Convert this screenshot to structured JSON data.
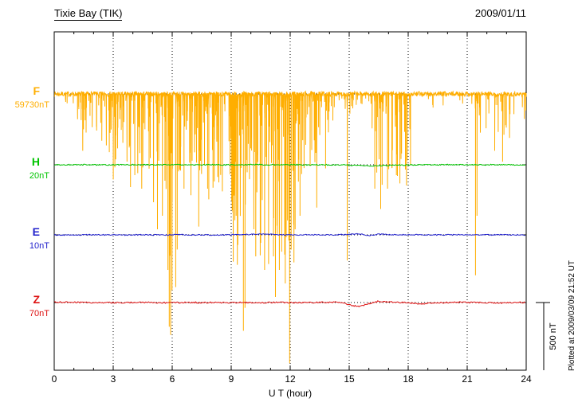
{
  "header": {
    "title": "Tixie Bay (TIK)",
    "date": "2009/01/11"
  },
  "axis": {
    "xlabel": "U T (hour)",
    "x_ticks": [
      0,
      3,
      6,
      9,
      12,
      15,
      18,
      21,
      24
    ],
    "x_minor_step": 1,
    "x_range": [
      0,
      24
    ]
  },
  "components": [
    {
      "label": "F",
      "value_label": "59730nT",
      "color": "#FFAE00"
    },
    {
      "label": "H",
      "value_label": "20nT",
      "color": "#00C400"
    },
    {
      "label": "E",
      "value_label": "10nT",
      "color": "#2222CC"
    },
    {
      "label": "Z",
      "value_label": "70nT",
      "color": "#DD1111"
    }
  ],
  "scale_bar": {
    "label": "500 nT",
    "span_nT": 500
  },
  "plotted_at": "Plotted at 2009/03/09 21:52 UT",
  "chart_data": {
    "type": "line",
    "title": "Tixie Bay (TIK)",
    "date": "2009/01/11",
    "xlabel": "U T (hour)",
    "x_range": [
      0,
      24
    ],
    "x_ticks": [
      0,
      3,
      6,
      9,
      12,
      15,
      18,
      21,
      24
    ],
    "grid": "dotted vertical lines every 3 hours, dotted horizontal baseline per component",
    "legend_position": "left margin component labels",
    "nT_per_division": 500,
    "series": [
      {
        "name": "F",
        "baseline_nT": 59730,
        "color": "#FFAE00",
        "noise_nT": 18,
        "spikes_hour_depth_nT": [
          [
            1.45,
            420
          ],
          [
            2.65,
            380
          ],
          [
            2.8,
            430
          ],
          [
            3.7,
            500
          ],
          [
            4.1,
            600
          ],
          [
            4.45,
            700
          ],
          [
            5.05,
            800
          ],
          [
            5.25,
            1000
          ],
          [
            5.5,
            900
          ],
          [
            5.78,
            1300
          ],
          [
            5.85,
            1720
          ],
          [
            5.92,
            1780
          ],
          [
            5.99,
            1450
          ],
          [
            6.6,
            700
          ],
          [
            7.35,
            980
          ],
          [
            7.8,
            700
          ],
          [
            8.55,
            720
          ],
          [
            9.05,
            860
          ],
          [
            9.25,
            900
          ],
          [
            9.62,
            1750
          ],
          [
            9.7,
            1580
          ],
          [
            10.15,
            1000
          ],
          [
            10.25,
            1200
          ],
          [
            10.5,
            1100
          ],
          [
            10.7,
            1300
          ],
          [
            11.15,
            1200
          ],
          [
            11.25,
            1500
          ],
          [
            11.45,
            1300
          ],
          [
            11.75,
            1400
          ],
          [
            11.97,
            1990
          ],
          [
            12.05,
            1150
          ],
          [
            12.25,
            1000
          ],
          [
            12.5,
            900
          ],
          [
            13.35,
            840
          ],
          [
            13.8,
            550
          ],
          [
            14.9,
            1230
          ],
          [
            16.3,
            700
          ],
          [
            16.6,
            850
          ],
          [
            16.95,
            700
          ],
          [
            17.4,
            600
          ],
          [
            21.42,
            1340
          ],
          [
            21.5,
            900
          ],
          [
            22.4,
            420
          ],
          [
            22.8,
            500
          ]
        ],
        "dense_bands": [
          {
            "from": 0.5,
            "to": 1.0,
            "per_hour": 8,
            "min_nT": 20,
            "max_nT": 120
          },
          {
            "from": 1.0,
            "to": 3.0,
            "per_hour": 20,
            "min_nT": 30,
            "max_nT": 350
          },
          {
            "from": 3.0,
            "to": 5.5,
            "per_hour": 25,
            "min_nT": 50,
            "max_nT": 700
          },
          {
            "from": 5.5,
            "to": 6.3,
            "per_hour": 25,
            "min_nT": 100,
            "max_nT": 1500
          },
          {
            "from": 6.3,
            "to": 9.0,
            "per_hour": 25,
            "min_nT": 50,
            "max_nT": 800
          },
          {
            "from": 9.0,
            "to": 12.2,
            "per_hour": 35,
            "min_nT": 80,
            "max_nT": 1300
          },
          {
            "from": 12.2,
            "to": 14.0,
            "per_hour": 25,
            "min_nT": 50,
            "max_nT": 700
          },
          {
            "from": 14.0,
            "to": 15.2,
            "per_hour": 12,
            "min_nT": 30,
            "max_nT": 300
          },
          {
            "from": 15.2,
            "to": 16.0,
            "per_hour": 10,
            "min_nT": 20,
            "max_nT": 200
          },
          {
            "from": 16.0,
            "to": 18.2,
            "per_hour": 22,
            "min_nT": 40,
            "max_nT": 700
          },
          {
            "from": 18.2,
            "to": 21.2,
            "per_hour": 6,
            "min_nT": 10,
            "max_nT": 120
          },
          {
            "from": 21.2,
            "to": 22.0,
            "per_hour": 10,
            "min_nT": 30,
            "max_nT": 300
          },
          {
            "from": 22.0,
            "to": 23.2,
            "per_hour": 14,
            "min_nT": 30,
            "max_nT": 450
          },
          {
            "from": 23.2,
            "to": 24.0,
            "per_hour": 8,
            "min_nT": 20,
            "max_nT": 200
          }
        ]
      },
      {
        "name": "H",
        "baseline_nT": 20,
        "color": "#00C400",
        "noise_nT": 4,
        "step_hour": 0.5,
        "offsets_nT": [
          0,
          0,
          1,
          0,
          0,
          -1,
          0,
          1,
          0,
          0,
          1,
          0,
          0,
          -1,
          0,
          0,
          1,
          0,
          0,
          0,
          2,
          1,
          0,
          0,
          1,
          0,
          0,
          -1,
          0,
          0,
          -2,
          -5,
          -8,
          -7,
          -4,
          -2,
          -1,
          0,
          0,
          0,
          1,
          0,
          0,
          0,
          0,
          1,
          0,
          0,
          0
        ]
      },
      {
        "name": "E",
        "baseline_nT": 10,
        "color": "#2222CC",
        "noise_nT": 4,
        "step_hour": 0.5,
        "offsets_nT": [
          0,
          -1,
          0,
          0,
          1,
          0,
          0,
          -1,
          0,
          1,
          0,
          0,
          0,
          1,
          0,
          0,
          -1,
          0,
          0,
          2,
          4,
          7,
          3,
          1,
          0,
          0,
          1,
          0,
          0,
          1,
          3,
          8,
          -4,
          6,
          2,
          0,
          1,
          0,
          0,
          0,
          0,
          1,
          0,
          0,
          0,
          0,
          1,
          0,
          0
        ]
      },
      {
        "name": "Z",
        "baseline_nT": 70,
        "color": "#DD1111",
        "noise_nT": 5,
        "step_hour": 0.5,
        "offsets_nT": [
          2,
          3,
          2,
          1,
          0,
          0,
          -1,
          0,
          0,
          1,
          0,
          -2,
          0,
          0,
          1,
          0,
          0,
          -1,
          0,
          0,
          -3,
          -2,
          0,
          1,
          0,
          -1,
          0,
          1,
          2,
          4,
          -18,
          -30,
          -8,
          10,
          6,
          2,
          -2,
          -10,
          -6,
          -2,
          0,
          2,
          1,
          0,
          -2,
          -4,
          -2,
          0,
          1
        ]
      }
    ]
  }
}
